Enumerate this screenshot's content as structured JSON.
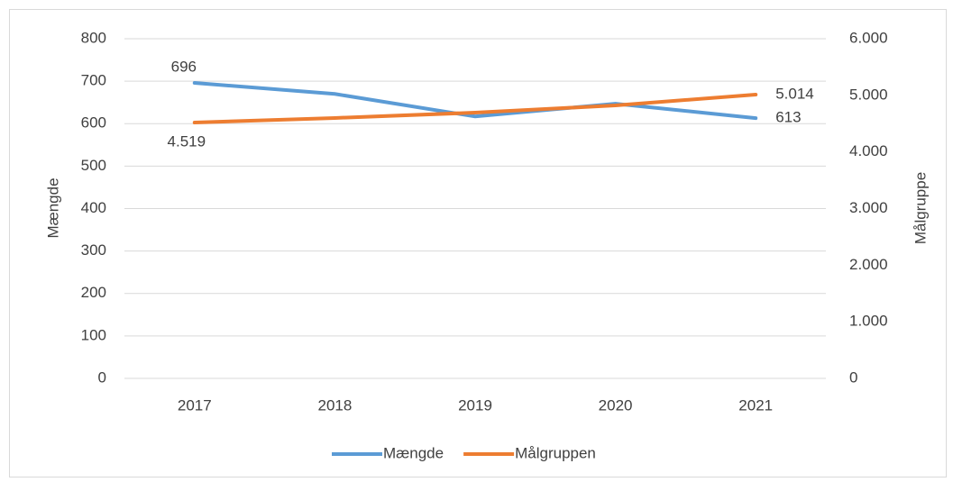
{
  "chart_data": {
    "type": "line",
    "categories": [
      "2017",
      "2018",
      "2019",
      "2020",
      "2021"
    ],
    "series": [
      {
        "name": "Mængde",
        "color": "#5b9bd5",
        "values": [
          696,
          670,
          617,
          647,
          613
        ],
        "value_labels": [
          "696",
          null,
          null,
          null,
          "613"
        ]
      },
      {
        "name": "Målgruppen",
        "color": "#ed7d31",
        "axis": "y2",
        "values": [
          4519,
          4600,
          4695,
          4822,
          5014
        ],
        "value_labels": [
          "4.519",
          null,
          null,
          null,
          "5.014"
        ]
      }
    ],
    "ylabel": "Mængde",
    "y2label": "Målgruppe",
    "ylim": [
      0,
      800
    ],
    "yticks": [
      0,
      100,
      200,
      300,
      400,
      500,
      600,
      700,
      800
    ],
    "y2lim": [
      0,
      6000
    ],
    "y2ticks": [
      0,
      {
        "value": 1000,
        "label": "1.000"
      },
      {
        "value": 2000,
        "label": "2.000"
      },
      {
        "value": 3000,
        "label": "3.000"
      },
      {
        "value": 4000,
        "label": "4.000"
      },
      {
        "value": 5000,
        "label": "5.000"
      },
      {
        "value": 6000,
        "label": "6.000"
      }
    ],
    "grid": true,
    "legend": "bottom"
  }
}
